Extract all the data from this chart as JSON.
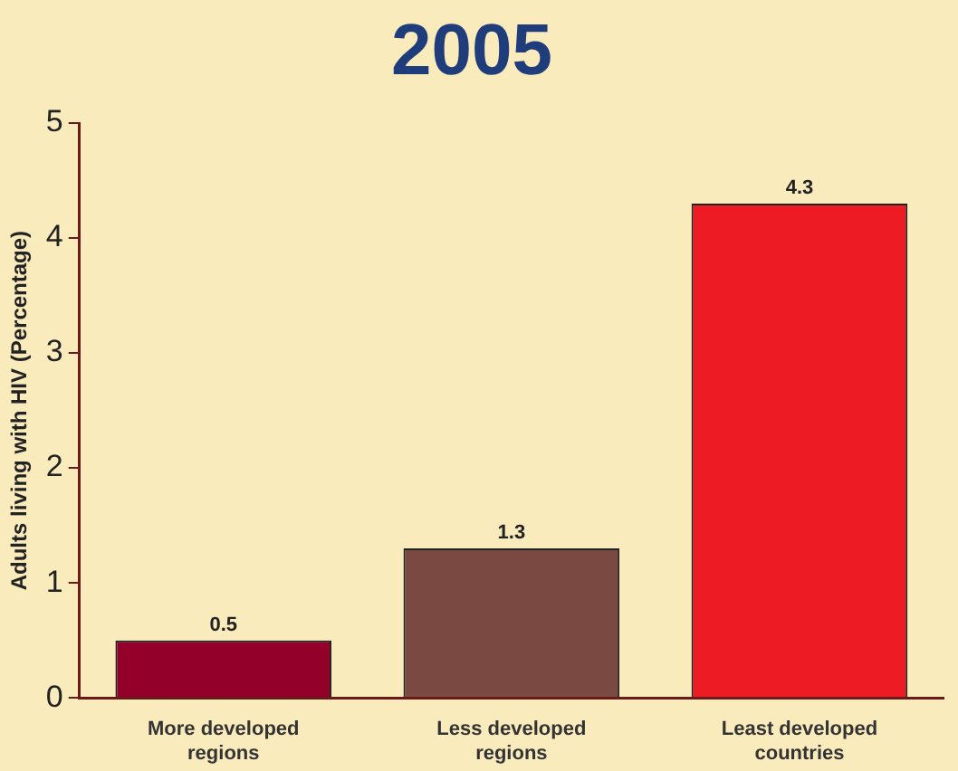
{
  "chart_data": {
    "type": "bar",
    "title": "2005",
    "ylabel": "Adults living with HIV (Percentage)",
    "categories": [
      "More developed regions",
      "Less developed regions",
      "Least developed countries"
    ],
    "values": [
      0.5,
      1.3,
      4.3
    ],
    "colors": [
      "#930029",
      "#7a4a42",
      "#ed1c24"
    ],
    "ylim": [
      0,
      5
    ],
    "yticks": [
      0,
      1,
      2,
      3,
      4,
      5
    ],
    "grid": false,
    "legend": false,
    "data_labels": true
  }
}
